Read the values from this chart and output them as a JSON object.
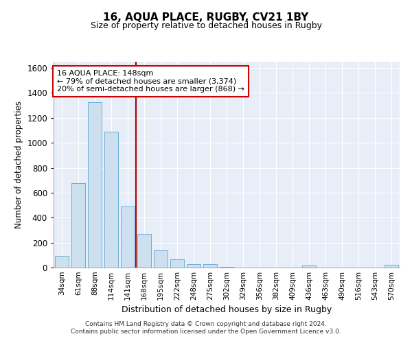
{
  "title": "16, AQUA PLACE, RUGBY, CV21 1BY",
  "subtitle": "Size of property relative to detached houses in Rugby",
  "xlabel": "Distribution of detached houses by size in Rugby",
  "ylabel": "Number of detached properties",
  "footer_line1": "Contains HM Land Registry data © Crown copyright and database right 2024.",
  "footer_line2": "Contains public sector information licensed under the Open Government Licence v3.0.",
  "categories": [
    "34sqm",
    "61sqm",
    "88sqm",
    "114sqm",
    "141sqm",
    "168sqm",
    "195sqm",
    "222sqm",
    "248sqm",
    "275sqm",
    "302sqm",
    "329sqm",
    "356sqm",
    "382sqm",
    "409sqm",
    "436sqm",
    "463sqm",
    "490sqm",
    "516sqm",
    "543sqm",
    "570sqm"
  ],
  "values": [
    95,
    675,
    1325,
    1090,
    490,
    270,
    135,
    65,
    30,
    30,
    5,
    0,
    0,
    0,
    0,
    15,
    0,
    0,
    0,
    0,
    20
  ],
  "bar_color": "#cce0f0",
  "bar_edge_color": "#6aaed6",
  "background_color": "#ffffff",
  "plot_bg_color": "#e8eef8",
  "grid_color": "#ffffff",
  "vline_color": "#aa0000",
  "annotation_line1": "16 AQUA PLACE: 148sqm",
  "annotation_line2": "← 79% of detached houses are smaller (3,374)",
  "annotation_line3": "20% of semi-detached houses are larger (868) →",
  "annotation_box_color": "#ffffff",
  "annotation_box_edge_color": "#cc0000",
  "ylim": [
    0,
    1650
  ],
  "yticks": [
    0,
    200,
    400,
    600,
    800,
    1000,
    1200,
    1400,
    1600
  ]
}
